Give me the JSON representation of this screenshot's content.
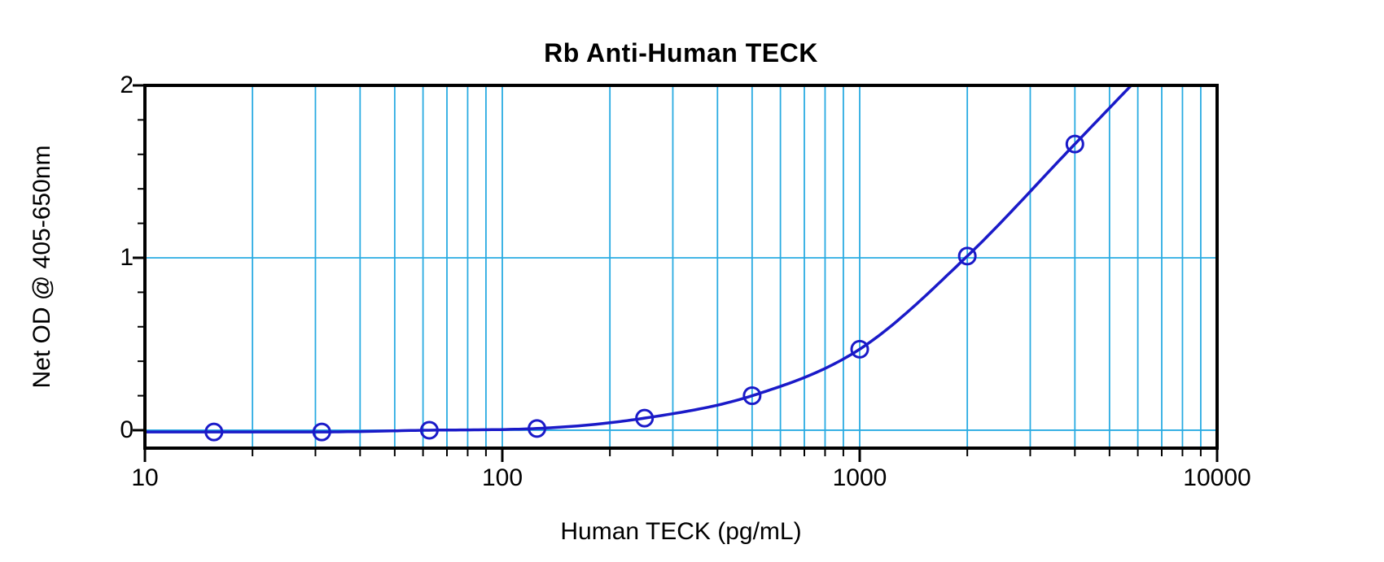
{
  "chart_data": {
    "type": "line",
    "title": "Rb Anti-Human TECK",
    "xlabel": "Human TECK (pg/mL)",
    "ylabel": "Net OD @ 405-650nm",
    "x_scale": "log",
    "xlim": [
      10,
      10000
    ],
    "ylim": [
      -0.104,
      2.0
    ],
    "x_ticks": [
      10,
      100,
      1000,
      10000
    ],
    "x_tick_labels": [
      "10",
      "100",
      "1000",
      "10000"
    ],
    "y_ticks": [
      0,
      1,
      2
    ],
    "y_tick_labels": [
      "0",
      "1",
      "2"
    ],
    "y_minor_step": 0.2,
    "grid": {
      "vertical": "log-minor-and-major",
      "horizontal_at": [
        0,
        1,
        2
      ],
      "legend": "none"
    },
    "series": [
      {
        "name": "standard-curve",
        "marker": "open-circle",
        "x": [
          15.6,
          31.25,
          62.5,
          125,
          250,
          500,
          1000,
          2000,
          4000
        ],
        "y": [
          -0.01,
          -0.01,
          0.0,
          0.01,
          0.07,
          0.2,
          0.47,
          1.01,
          1.66
        ]
      }
    ],
    "colors": {
      "curve": "#1a1ac8",
      "grid": "#29abe2",
      "axis": "#000000",
      "background": "#ffffff"
    }
  }
}
